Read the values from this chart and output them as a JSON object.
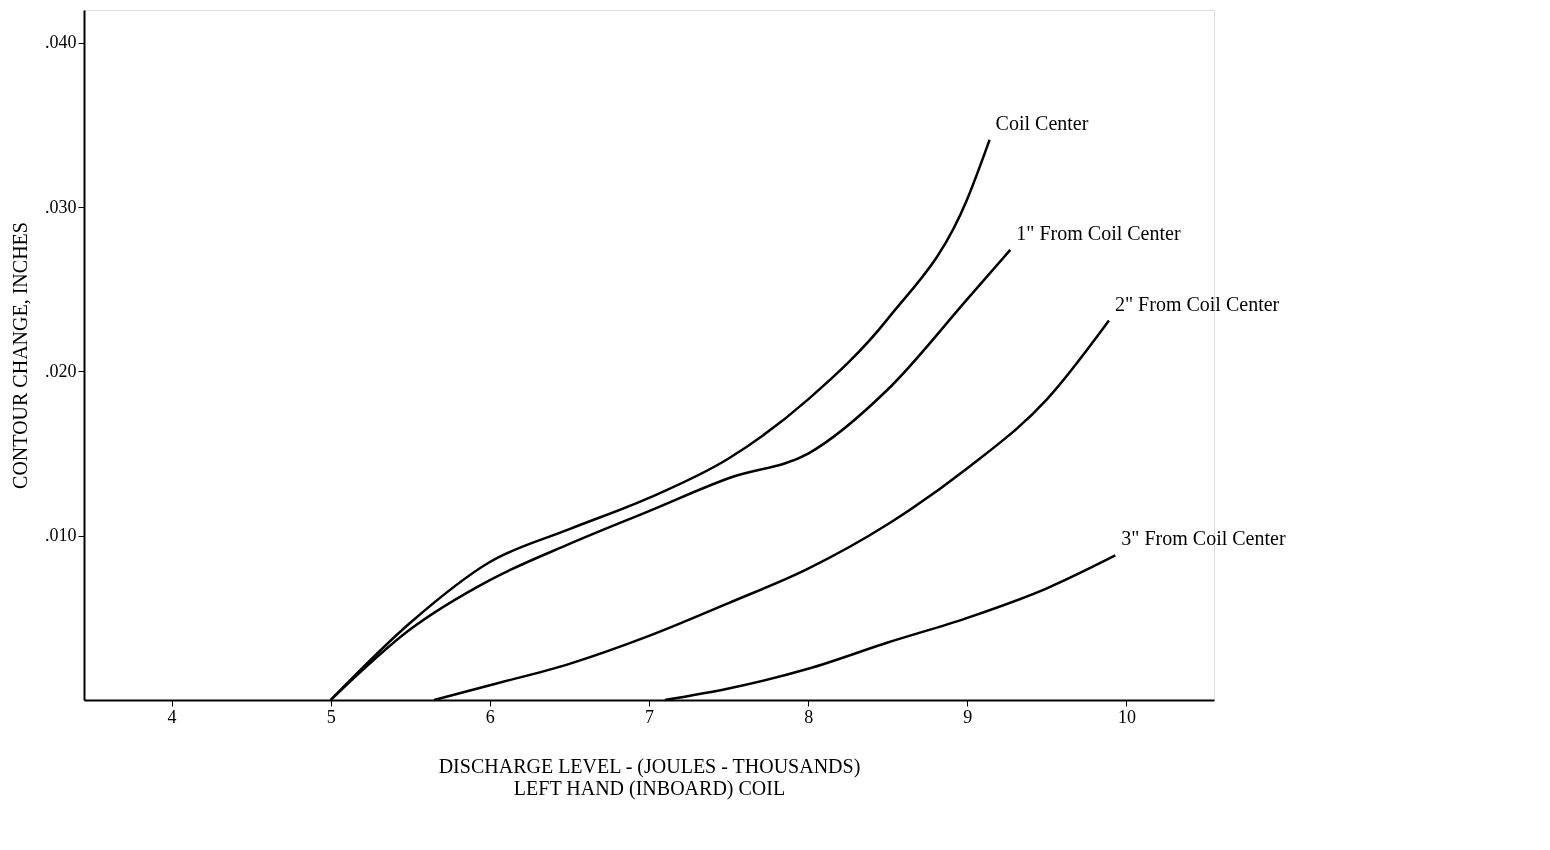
{
  "chart_data": {
    "type": "line",
    "xlabel": "DISCHARGE LEVEL - (JOULES - THOUSANDS)\nLEFT HAND (INBOARD) COIL",
    "ylabel": "CONTOUR CHANGE, INCHES",
    "xlim": [
      3.45,
      10.55
    ],
    "ylim": [
      0,
      0.042
    ],
    "xticks": [
      4,
      5,
      6,
      7,
      8,
      9,
      10
    ],
    "yticks": [
      {
        "value": 0.01,
        "label": ".010"
      },
      {
        "value": 0.02,
        "label": ".020"
      },
      {
        "value": 0.03,
        "label": ".030"
      },
      {
        "value": 0.04,
        "label": ".040"
      }
    ],
    "grid": false,
    "legend": false,
    "marker": "none",
    "line_style": "solid",
    "series": [
      {
        "name": "Coil Center",
        "color": "#000000",
        "x": [
          5,
          5.5,
          6,
          6.5,
          7,
          7.5,
          8,
          8.5,
          9,
          9.14
        ],
        "values": [
          0,
          0.0047,
          0.0084,
          0.0104,
          0.0123,
          0.0147,
          0.0183,
          0.0232,
          0.0305,
          0.0341
        ]
      },
      {
        "name": "1\" From Coil Center",
        "color": "#000000",
        "x": [
          5,
          5.5,
          6,
          6.5,
          7,
          7.5,
          8,
          8.5,
          9,
          9.27
        ],
        "values": [
          0,
          0.0043,
          0.0073,
          0.0095,
          0.0115,
          0.0135,
          0.015,
          0.0189,
          0.0244,
          0.0274
        ]
      },
      {
        "name": "2\" From Coil Center",
        "color": "#000000",
        "x": [
          5.65,
          6,
          6.5,
          7,
          7.5,
          8,
          8.5,
          9,
          9.5,
          9.89
        ],
        "values": [
          0,
          0.0009,
          0.0022,
          0.0039,
          0.0059,
          0.008,
          0.0107,
          0.0141,
          0.0183,
          0.0231
        ]
      },
      {
        "name": "3\" From Coil Center",
        "color": "#000000",
        "x": [
          7.1,
          7.5,
          8,
          8.5,
          9,
          9.5,
          9.93
        ],
        "values": [
          0,
          0.0007,
          0.0019,
          0.0035,
          0.005,
          0.0068,
          0.0088
        ]
      }
    ]
  }
}
